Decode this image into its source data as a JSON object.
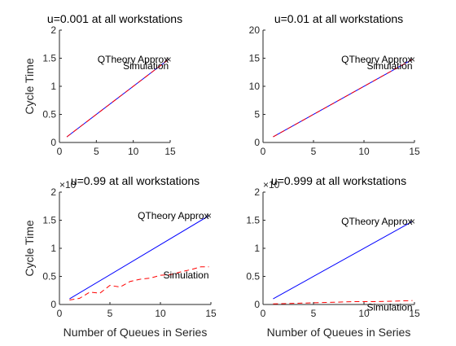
{
  "figure": {
    "background": "#ffffff",
    "axis_color": "#262626"
  },
  "chart_data": [
    {
      "type": "line",
      "title": "u=0.001 at all workstations",
      "xlabel": "",
      "ylabel": "Cycle Time",
      "xlim": [
        0,
        15
      ],
      "ylim": [
        0,
        2
      ],
      "xticks": [
        0,
        5,
        10,
        15
      ],
      "yticks": [
        0,
        0.5,
        1,
        1.5,
        2
      ],
      "ytick_labels": [
        "0",
        "0.5",
        "1",
        "1.5",
        "2"
      ],
      "y_exponent": "",
      "grid": false,
      "series": [
        {
          "style": "solid",
          "color": "#0000ff",
          "x": [
            1,
            14.8
          ],
          "y": [
            0.1,
            1.48
          ]
        },
        {
          "style": "dashed",
          "color": "#ff0000",
          "x": [
            1,
            14.8
          ],
          "y": [
            0.1,
            1.48
          ]
        }
      ],
      "annotations": [
        {
          "text": "QTheory Approx",
          "x": 14.8,
          "y": 1.48,
          "anchor": "end"
        },
        {
          "text": "Simulation",
          "x": 14.8,
          "y": 1.36,
          "anchor": "end"
        }
      ],
      "markers": [
        {
          "x": 14.8,
          "y": 1.48,
          "symbol": "×"
        }
      ]
    },
    {
      "type": "line",
      "title": "u=0.01 at all workstations",
      "xlabel": "",
      "ylabel": "",
      "xlim": [
        0,
        15
      ],
      "ylim": [
        0,
        20
      ],
      "xticks": [
        0,
        5,
        10,
        15
      ],
      "yticks": [
        0,
        5,
        10,
        15,
        20
      ],
      "ytick_labels": [
        "0",
        "5",
        "10",
        "15",
        "20"
      ],
      "y_exponent": "",
      "grid": false,
      "series": [
        {
          "style": "solid",
          "color": "#0000ff",
          "x": [
            1,
            14.8
          ],
          "y": [
            1.0,
            14.8
          ]
        },
        {
          "style": "dashed",
          "color": "#ff0000",
          "x": [
            1,
            14.8
          ],
          "y": [
            1.0,
            14.8
          ]
        }
      ],
      "annotations": [
        {
          "text": "QTheory Approx",
          "x": 14.8,
          "y": 14.8,
          "anchor": "end"
        },
        {
          "text": "Simulation",
          "x": 14.8,
          "y": 13.6,
          "anchor": "end"
        }
      ],
      "markers": [
        {
          "x": 14.8,
          "y": 14.8,
          "symbol": "×"
        }
      ]
    },
    {
      "type": "line",
      "title": "u=0.99 at all workstations",
      "xlabel": "Number of Queues in Series",
      "ylabel": "Cycle Time",
      "xlim": [
        0,
        15
      ],
      "ylim": [
        0,
        2
      ],
      "xticks": [
        0,
        5,
        10,
        15
      ],
      "yticks": [
        0,
        0.5,
        1,
        1.5,
        2
      ],
      "ytick_labels": [
        "0",
        "0.5",
        "1",
        "1.5",
        "2"
      ],
      "y_exponent": "×10",
      "grid": false,
      "series": [
        {
          "style": "solid",
          "color": "#0000ff",
          "x": [
            1,
            14.8
          ],
          "y": [
            0.1,
            1.58
          ]
        },
        {
          "style": "dashed",
          "color": "#ff0000",
          "x": [
            1,
            2,
            3,
            4,
            5,
            6,
            7,
            8,
            9,
            10,
            11,
            12,
            13,
            14,
            14.8
          ],
          "y": [
            0.08,
            0.11,
            0.22,
            0.2,
            0.34,
            0.31,
            0.41,
            0.45,
            0.47,
            0.52,
            0.53,
            0.58,
            0.62,
            0.67,
            0.67
          ]
        }
      ],
      "annotations": [
        {
          "text": "QTheory Approx",
          "x": 14.8,
          "y": 1.58,
          "anchor": "end"
        },
        {
          "text": "Simulation",
          "x": 14.8,
          "y": 0.52,
          "anchor": "end"
        }
      ],
      "markers": [
        {
          "x": 14.8,
          "y": 1.58,
          "symbol": "×"
        }
      ]
    },
    {
      "type": "line",
      "title": "u=0.999 at all workstations",
      "xlabel": "Number of Queues in Series",
      "ylabel": "",
      "xlim": [
        0,
        15
      ],
      "ylim": [
        0,
        2
      ],
      "xticks": [
        0,
        5,
        10,
        15
      ],
      "yticks": [
        0,
        0.5,
        1,
        1.5,
        2
      ],
      "ytick_labels": [
        "0",
        "0.5",
        "1",
        "1.5",
        "2"
      ],
      "y_exponent": "×10",
      "grid": false,
      "series": [
        {
          "style": "solid",
          "color": "#0000ff",
          "x": [
            1,
            14.8
          ],
          "y": [
            0.1,
            1.48
          ]
        },
        {
          "style": "dashed",
          "color": "#ff0000",
          "x": [
            1,
            3,
            5,
            7,
            9,
            11,
            13,
            14.8
          ],
          "y": [
            0.01,
            0.02,
            0.03,
            0.04,
            0.05,
            0.05,
            0.06,
            0.07
          ]
        }
      ],
      "annotations": [
        {
          "text": "QTheory Approx",
          "x": 14.8,
          "y": 1.48,
          "anchor": "end"
        },
        {
          "text": "Simulation",
          "x": 14.8,
          "y": -0.05,
          "anchor": "end"
        }
      ],
      "markers": [
        {
          "x": 14.8,
          "y": 1.48,
          "symbol": "×"
        }
      ]
    }
  ]
}
